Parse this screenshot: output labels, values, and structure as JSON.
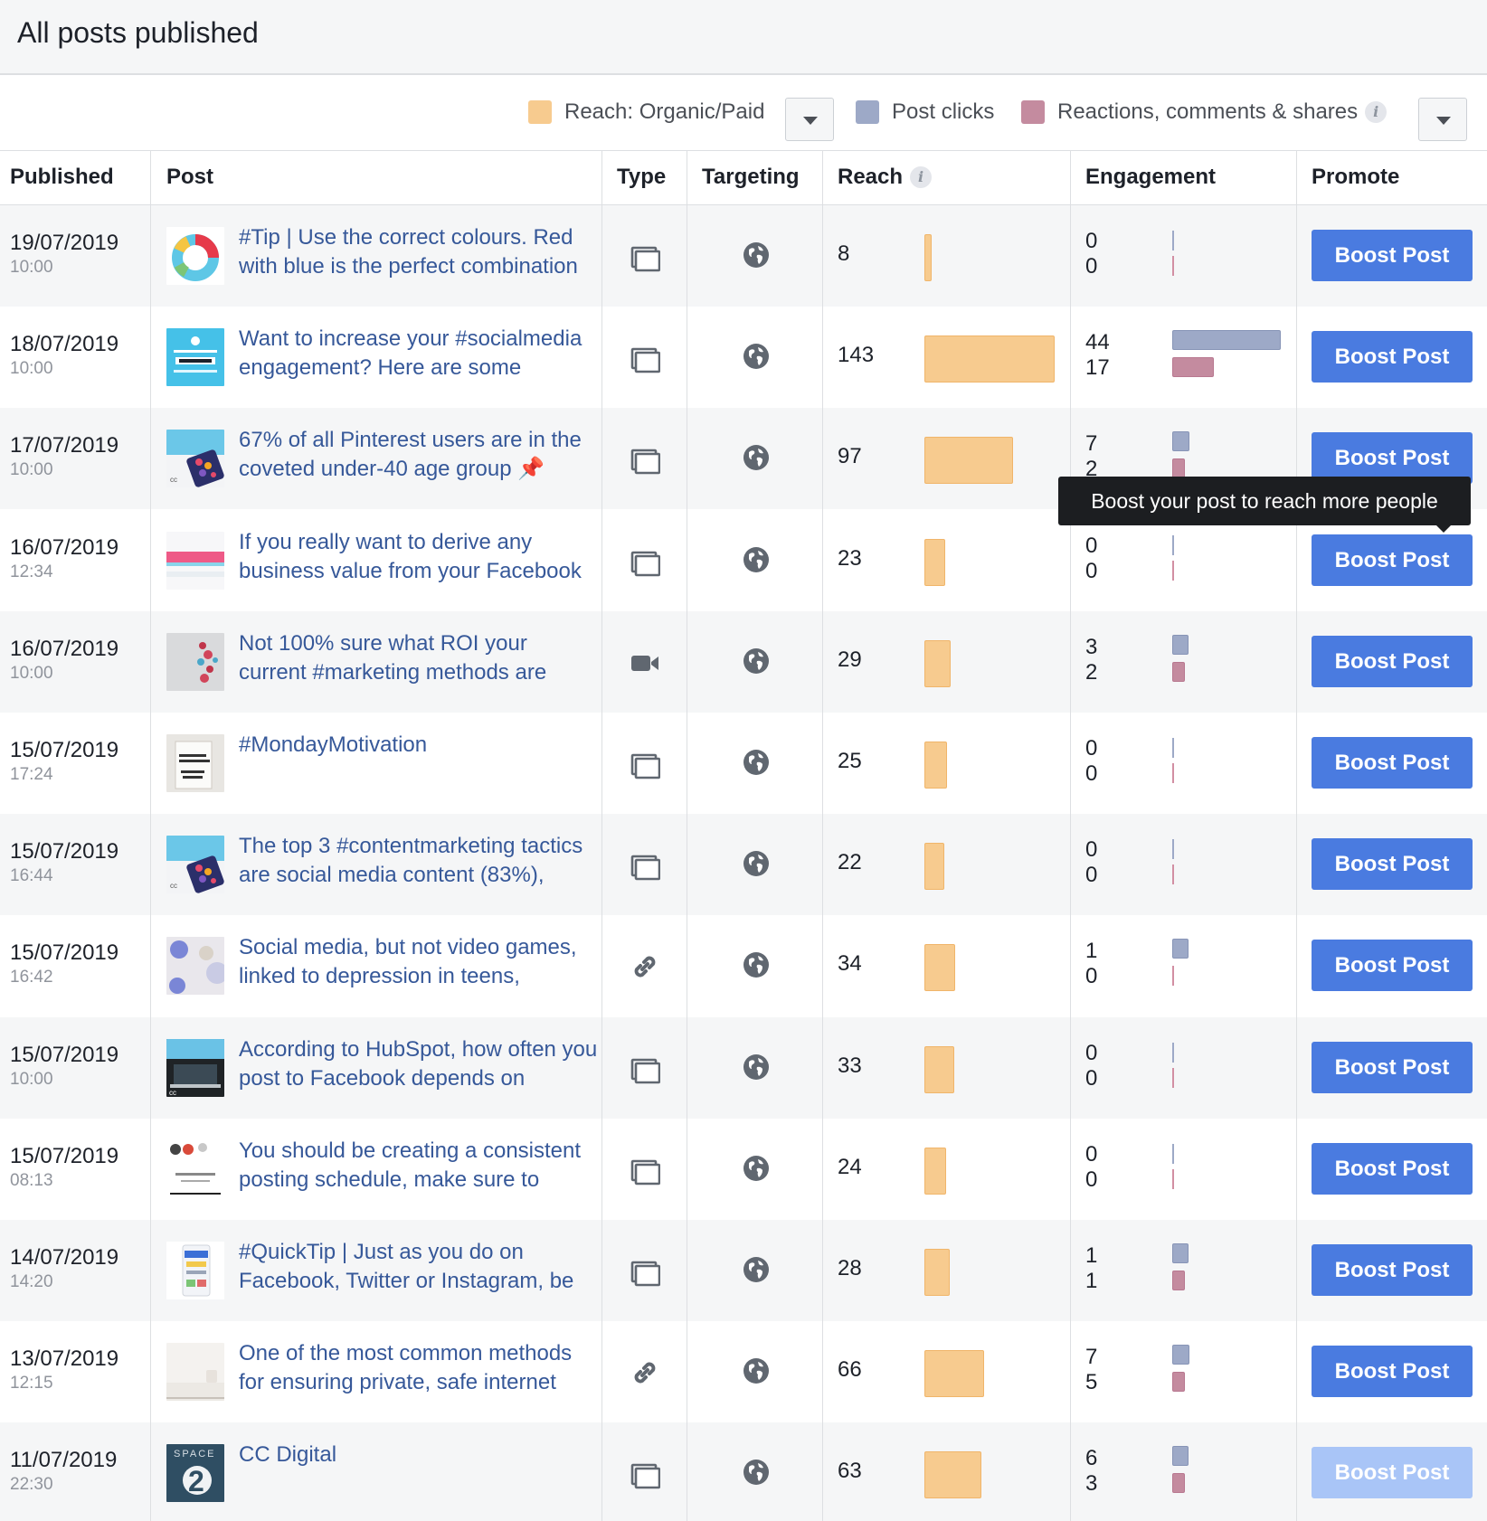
{
  "page": {
    "title": "All posts published"
  },
  "legend": {
    "reach_label": "Reach: Organic/Paid",
    "clicks_label": "Post clicks",
    "reactions_label": "Reactions, comments & shares",
    "colors": {
      "reach": "#f7cb8f",
      "clicks": "#9da9c7",
      "reactions": "#c48b9f"
    }
  },
  "columns": {
    "published": "Published",
    "post": "Post",
    "type": "Type",
    "targeting": "Targeting",
    "reach": "Reach",
    "engagement": "Engagement",
    "promote": "Promote"
  },
  "tooltip": "Boost your post to reach more people",
  "rows": [
    {
      "date": "19/07/2019",
      "time": "10:00",
      "text": "#Tip | Use the correct colours. Red with blue is the perfect combination",
      "type": "photo",
      "targeting": "public-globe-icon",
      "reach": 8,
      "clicks": 0,
      "reactions": 0,
      "boost": "Boost Post",
      "thumb": "donut"
    },
    {
      "date": "18/07/2019",
      "time": "10:00",
      "text": "Want to increase your #socialmedia engagement? Here are some",
      "type": "photo",
      "targeting": "public-globe-icon",
      "reach": 143,
      "clicks": 44,
      "reactions": 17,
      "boost": "Boost Post",
      "thumb": "content"
    },
    {
      "date": "17/07/2019",
      "time": "10:00",
      "text": "67% of all Pinterest users are in the coveted under-40 age group 📌",
      "type": "photo",
      "targeting": "public-globe-icon",
      "reach": 97,
      "clicks": 7,
      "reactions": 2,
      "boost": "Boost Post",
      "thumb": "phone"
    },
    {
      "date": "16/07/2019",
      "time": "12:34",
      "text": "If you really want to derive any business value from your Facebook",
      "type": "photo",
      "targeting": "public-globe-icon",
      "reach": 23,
      "clicks": 0,
      "reactions": 0,
      "boost": "Boost Post",
      "thumb": "stripe"
    },
    {
      "date": "16/07/2019",
      "time": "10:00",
      "text": "Not 100% sure what ROI your current #marketing methods are",
      "type": "video",
      "targeting": "public-globe-icon",
      "reach": 29,
      "clicks": 3,
      "reactions": 2,
      "boost": "Boost Post",
      "thumb": "dots"
    },
    {
      "date": "15/07/2019",
      "time": "17:24",
      "text": "#MondayMotivation",
      "type": "photo",
      "targeting": "public-globe-icon",
      "reach": 25,
      "clicks": 0,
      "reactions": 0,
      "boost": "Boost Post",
      "thumb": "inhale"
    },
    {
      "date": "15/07/2019",
      "time": "16:44",
      "text": "The top 3 #contentmarketing tactics are social media content (83%),",
      "type": "photo",
      "targeting": "public-globe-icon",
      "reach": 22,
      "clicks": 0,
      "reactions": 0,
      "boost": "Boost Post",
      "thumb": "phone"
    },
    {
      "date": "15/07/2019",
      "time": "16:42",
      "text": "Social media, but not video games, linked to depression in teens,",
      "type": "link",
      "targeting": "public-globe-icon",
      "reach": 34,
      "clicks": 1,
      "reactions": 0,
      "boost": "Boost Post",
      "thumb": "social"
    },
    {
      "date": "15/07/2019",
      "time": "10:00",
      "text": "According to HubSpot, how often you post to Facebook depends on",
      "type": "photo",
      "targeting": "public-globe-icon",
      "reach": 33,
      "clicks": 0,
      "reactions": 0,
      "boost": "Boost Post",
      "thumb": "laptop"
    },
    {
      "date": "15/07/2019",
      "time": "08:13",
      "text": "You should be creating a consistent posting schedule, make sure to",
      "type": "photo",
      "targeting": "public-globe-icon",
      "reach": 24,
      "clicks": 0,
      "reactions": 0,
      "boost": "Boost Post",
      "thumb": "schedule"
    },
    {
      "date": "14/07/2019",
      "time": "14:20",
      "text": "#QuickTip | Just as you do on Facebook, Twitter or Instagram, be",
      "type": "photo",
      "targeting": "public-globe-icon",
      "reach": 28,
      "clicks": 1,
      "reactions": 1,
      "boost": "Boost Post",
      "thumb": "mobile"
    },
    {
      "date": "13/07/2019",
      "time": "12:15",
      "text": "One of the most common methods for ensuring private, safe internet",
      "type": "link",
      "targeting": "public-globe-icon",
      "reach": 66,
      "clicks": 7,
      "reactions": 5,
      "boost": "Boost Post",
      "thumb": "desk"
    },
    {
      "date": "11/07/2019",
      "time": "22:30",
      "text": "CC Digital",
      "type": "photo",
      "targeting": "public-globe-icon",
      "reach": 63,
      "clicks": 6,
      "reactions": 3,
      "boost": "Boost Post",
      "boost_disabled": true,
      "thumb": "space"
    }
  ]
}
